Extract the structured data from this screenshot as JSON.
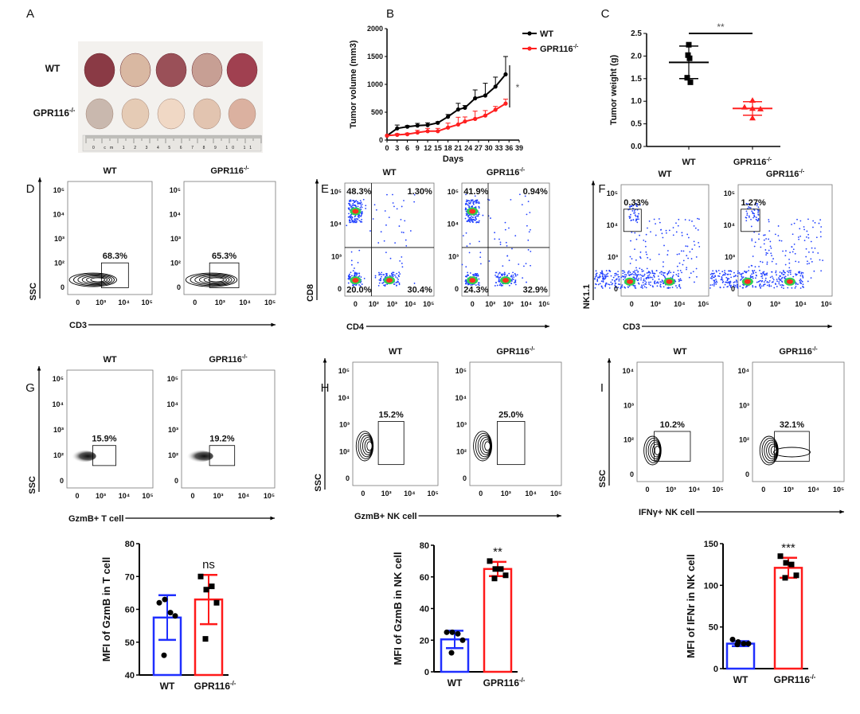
{
  "panel_letters": [
    "A",
    "B",
    "C",
    "D",
    "E",
    "F",
    "G",
    "H",
    "I"
  ],
  "groups": {
    "wt": "WT",
    "ko": {
      "text": "GPR116",
      "sup": "-/-"
    }
  },
  "colors": {
    "wt_line": "#000000",
    "ko_line": "#ff2020",
    "wt_bar": "#1f2fff",
    "ko_bar": "#ff1a1a"
  },
  "photo": {
    "row_labels": [
      "WT",
      "GPR116-/-"
    ],
    "ruler_text": "0 cm 1 2 3 4 5 6 7 8 9 10 11"
  },
  "chart_data": [
    {
      "id": "B",
      "type": "line",
      "xlabel": "Days",
      "ylabel": "Tumor volume (mm3)",
      "xlim": [
        0,
        39
      ],
      "ylim": [
        0,
        2000
      ],
      "xticks": [
        0,
        3,
        6,
        9,
        12,
        15,
        18,
        21,
        24,
        27,
        30,
        33,
        36,
        39
      ],
      "yticks": [
        0,
        500,
        1000,
        1500,
        2000
      ],
      "legend": "top-right",
      "significance": "*",
      "series": [
        {
          "name": "WT",
          "color": "#000000",
          "x": [
            0,
            3,
            6,
            9,
            12,
            15,
            18,
            21,
            23,
            26,
            29,
            32,
            35
          ],
          "y": [
            80,
            210,
            240,
            260,
            270,
            310,
            420,
            550,
            580,
            750,
            800,
            960,
            1180
          ],
          "err": [
            0,
            60,
            20,
            40,
            40,
            20,
            40,
            110,
            40,
            150,
            220,
            170,
            320
          ]
        },
        {
          "name": "GPR116-/-",
          "color": "#ff2020",
          "x": [
            0,
            3,
            6,
            9,
            12,
            15,
            18,
            21,
            23,
            26,
            29,
            32,
            35
          ],
          "y": [
            80,
            95,
            105,
            135,
            160,
            160,
            225,
            280,
            335,
            380,
            440,
            545,
            655
          ],
          "err": [
            0,
            20,
            20,
            40,
            50,
            50,
            80,
            130,
            80,
            140,
            90,
            60,
            80
          ]
        }
      ]
    },
    {
      "id": "C",
      "type": "scatter",
      "ylabel": "Tumor weight (g)",
      "ylim": [
        0,
        2.5
      ],
      "yticks": [
        "0.0",
        "0.5",
        "1.0",
        "1.5",
        "2.0",
        "2.5"
      ],
      "categories": [
        "WT",
        "GPR116-/-"
      ],
      "significance": "**",
      "groups": [
        {
          "name": "WT",
          "marker": "square",
          "color": "#000000",
          "points": [
            2.25,
            2.02,
            1.95,
            1.52,
            1.42
          ],
          "mean": 1.86,
          "sd": 0.36
        },
        {
          "name": "GPR116-/-",
          "marker": "triangle",
          "color": "#ff2020",
          "points": [
            1.02,
            0.87,
            0.84,
            0.83,
            0.63
          ],
          "mean": 0.84,
          "sd": 0.15
        }
      ]
    },
    {
      "id": "G2",
      "type": "bar",
      "ylabel": "MFI of GzmB in T cell",
      "ylim": [
        40,
        80
      ],
      "yticks": [
        40,
        50,
        60,
        70,
        80
      ],
      "significance": "ns",
      "categories": [
        "WT",
        "GPR116-/-"
      ],
      "groups": [
        {
          "name": "WT",
          "mean": 57.5,
          "sd": 6.8,
          "points": [
            62,
            63,
            59,
            58,
            46
          ]
        },
        {
          "name": "GPR116-/-",
          "mean": 63,
          "sd": 7.5,
          "points": [
            70,
            66,
            67,
            62,
            51
          ]
        }
      ]
    },
    {
      "id": "H2",
      "type": "bar",
      "ylabel": "MFI of GzmB in NK cell",
      "ylim": [
        0,
        80
      ],
      "yticks": [
        0,
        20,
        40,
        60,
        80
      ],
      "significance": "**",
      "categories": [
        "WT",
        "GPR116-/-"
      ],
      "groups": [
        {
          "name": "WT",
          "mean": 20.5,
          "sd": 5.5,
          "points": [
            25,
            25,
            24,
            20,
            12
          ]
        },
        {
          "name": "GPR116-/-",
          "mean": 65,
          "sd": 4.5,
          "points": [
            70,
            65,
            65,
            61,
            59
          ]
        }
      ]
    },
    {
      "id": "I2",
      "type": "bar",
      "ylabel": "MFI of IFNr in NK cell",
      "ylim": [
        0,
        150
      ],
      "yticks": [
        0,
        50,
        100,
        150
      ],
      "significance": "***",
      "categories": [
        "WT",
        "GPR116-/-"
      ],
      "groups": [
        {
          "name": "WT",
          "mean": 30,
          "sd": 3,
          "points": [
            35,
            32,
            30,
            30,
            29
          ]
        },
        {
          "name": "GPR116-/-",
          "mean": 121,
          "sd": 12,
          "points": [
            135,
            127,
            125,
            112,
            109
          ]
        }
      ]
    }
  ],
  "flow_plots": [
    {
      "id": "D",
      "style": "contour",
      "xlabel": "CD3",
      "ylabel": "SSC",
      "xticks": [
        "0",
        "10³",
        "10⁴",
        "10⁵"
      ],
      "yticks": [
        "0",
        "10²",
        "10³",
        "10⁴",
        "10⁵"
      ],
      "plots": [
        {
          "title": "WT",
          "gates": [
            "68.3%"
          ]
        },
        {
          "title": "GPR116-/-",
          "gates": [
            "65.3%"
          ]
        }
      ]
    },
    {
      "id": "E",
      "style": "quadrant",
      "xlabel": "CD4",
      "ylabel": "CD8",
      "xticks": [
        "0",
        "10²",
        "10³",
        "10⁴",
        "10⁵"
      ],
      "yticks": [
        "0",
        "10³",
        "10⁴",
        "10⁵"
      ],
      "plots": [
        {
          "title": "WT",
          "gates": [
            "48.3%",
            "1.30%",
            "20.0%",
            "30.4%"
          ]
        },
        {
          "title": "GPR116-/-",
          "gates": [
            "41.9%",
            "0.94%",
            "24.3%",
            "32.9%"
          ]
        }
      ]
    },
    {
      "id": "F",
      "style": "pseudo",
      "xlabel": "CD3",
      "ylabel": "NK1.1",
      "xticks": [
        "0",
        "10³",
        "10⁴",
        "10⁵"
      ],
      "yticks": [
        "0",
        "10³",
        "10⁴",
        "10⁵"
      ],
      "plots": [
        {
          "title": "WT",
          "gates": [
            "0.33%"
          ]
        },
        {
          "title": "GPR116-/-",
          "gates": [
            "1.27%"
          ]
        }
      ]
    },
    {
      "id": "G",
      "style": "smear",
      "xlabel": "GzmB+ T cell",
      "ylabel": "SSC",
      "xticks": [
        "0",
        "10³",
        "10⁴",
        "10⁵"
      ],
      "yticks": [
        "0",
        "10²",
        "10³",
        "10⁴",
        "10⁵"
      ],
      "plots": [
        {
          "title": "WT",
          "gates": [
            "15.9%"
          ]
        },
        {
          "title": "GPR116-/-",
          "gates": [
            "19.2%"
          ]
        }
      ]
    },
    {
      "id": "H",
      "style": "contour2",
      "xlabel": "GzmB+ NK cell",
      "ylabel": "SSC",
      "xticks": [
        "0",
        "10³",
        "10⁴",
        "10⁵"
      ],
      "yticks": [
        "0",
        "10²",
        "10³",
        "10⁴",
        "10⁵"
      ],
      "plots": [
        {
          "title": "WT",
          "gates": [
            "15.2%"
          ]
        },
        {
          "title": "GPR116-/-",
          "gates": [
            "25.0%"
          ]
        }
      ]
    },
    {
      "id": "I",
      "style": "contour3",
      "xlabel": "IFNγ+ NK cell",
      "ylabel": "SSC",
      "xticks": [
        "0",
        "10³",
        "10⁴",
        "10⁵"
      ],
      "yticks": [
        "0",
        "10²",
        "10³",
        "10⁴"
      ],
      "plots": [
        {
          "title": "WT",
          "gates": [
            "10.2%"
          ]
        },
        {
          "title": "GPR116-/-",
          "gates": [
            "32.1%"
          ]
        }
      ]
    }
  ]
}
